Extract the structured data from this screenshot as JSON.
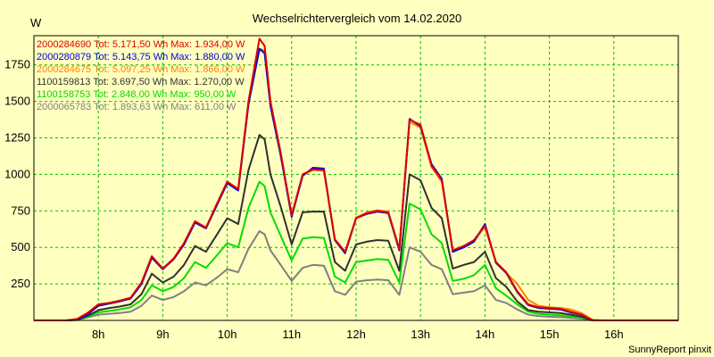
{
  "chart_data": {
    "type": "line",
    "title": "Wechselrichtervergleich vom 14.02.2020",
    "ylabel": "W",
    "xlabel": "",
    "footer": "SunnyReport pinxit",
    "xlim": [
      7.0,
      17.0
    ],
    "ylim": [
      0,
      1950
    ],
    "grid": true,
    "legend_position": "top-left",
    "x_ticks": [
      8,
      9,
      10,
      11,
      12,
      13,
      14,
      15,
      16
    ],
    "x_tick_labels": [
      "8h",
      "9h",
      "10h",
      "11h",
      "12h",
      "13h",
      "14h",
      "15h",
      "16h"
    ],
    "y_ticks": [
      250,
      500,
      750,
      1000,
      1250,
      1500,
      1750
    ],
    "y_tick_labels": [
      "250",
      "500",
      "750",
      "1000",
      "1250",
      "1500",
      "1750"
    ],
    "x": [
      7.0,
      7.25,
      7.5,
      7.67,
      7.83,
      8.0,
      8.17,
      8.33,
      8.5,
      8.67,
      8.83,
      9.0,
      9.17,
      9.33,
      9.5,
      9.67,
      9.83,
      10.0,
      10.17,
      10.33,
      10.5,
      10.58,
      10.67,
      10.83,
      11.0,
      11.17,
      11.33,
      11.5,
      11.67,
      11.83,
      12.0,
      12.17,
      12.33,
      12.5,
      12.67,
      12.83,
      13.0,
      13.17,
      13.33,
      13.5,
      13.67,
      13.83,
      14.0,
      14.17,
      14.33,
      14.5,
      14.67,
      14.83,
      15.0,
      15.17,
      15.33,
      15.5,
      15.67,
      15.83,
      16.0,
      16.17,
      16.33,
      16.5,
      16.67,
      16.83,
      17.0
    ],
    "series": [
      {
        "name": "2000284690",
        "label": "2000284690 Tot: 5.171,50 Wh Max: 1.934,00 W",
        "color": "#dd0000",
        "values": [
          0,
          0,
          0,
          10,
          50,
          110,
          120,
          135,
          155,
          260,
          440,
          355,
          425,
          530,
          680,
          635,
          790,
          950,
          900,
          1500,
          1930,
          1880,
          1500,
          1150,
          720,
          1000,
          1035,
          1030,
          555,
          470,
          700,
          735,
          750,
          740,
          490,
          1375,
          1340,
          1060,
          960,
          480,
          510,
          550,
          650,
          400,
          330,
          200,
          110,
          90,
          85,
          80,
          60,
          40,
          0,
          0,
          0,
          0,
          0,
          0,
          0,
          0,
          0
        ]
      },
      {
        "name": "2000280879",
        "label": "2000280879 Tot: 5.143,75 Wh Max: 1.880,00 W",
        "color": "#0000dd",
        "values": [
          0,
          0,
          0,
          5,
          40,
          100,
          115,
          130,
          150,
          250,
          430,
          350,
          420,
          520,
          670,
          630,
          780,
          940,
          890,
          1480,
          1860,
          1830,
          1470,
          1130,
          710,
          990,
          1045,
          1040,
          550,
          460,
          700,
          730,
          745,
          735,
          480,
          1380,
          1330,
          1070,
          970,
          470,
          500,
          540,
          660,
          395,
          325,
          195,
          105,
          85,
          80,
          75,
          55,
          38,
          0,
          0,
          0,
          0,
          0,
          0,
          0,
          0,
          0
        ]
      },
      {
        "name": "2000284675",
        "label": "2000284675 Tot: 5.097,25 Wh Max: 1.866,00 W",
        "color": "#ff8000",
        "values": [
          0,
          0,
          0,
          8,
          45,
          105,
          118,
          130,
          152,
          255,
          435,
          352,
          422,
          525,
          675,
          632,
          785,
          945,
          895,
          1490,
          1860,
          1850,
          1480,
          1140,
          715,
          995,
          1030,
          1025,
          550,
          465,
          705,
          740,
          755,
          745,
          485,
          1360,
          1320,
          1050,
          950,
          475,
          505,
          545,
          640,
          395,
          325,
          250,
          140,
          100,
          90,
          85,
          75,
          50,
          5,
          0,
          0,
          0,
          0,
          0,
          0,
          0,
          0
        ]
      },
      {
        "name": "1100159813",
        "label": "1100159813 Tot: 3.697,50 Wh Max: 1.270,00 W",
        "color": "#303030",
        "values": [
          0,
          0,
          0,
          5,
          30,
          70,
          85,
          95,
          110,
          180,
          320,
          260,
          300,
          380,
          510,
          470,
          580,
          700,
          660,
          1030,
          1270,
          1240,
          1000,
          780,
          520,
          740,
          745,
          745,
          400,
          340,
          520,
          540,
          550,
          545,
          340,
          1000,
          960,
          770,
          700,
          355,
          380,
          400,
          470,
          290,
          230,
          130,
          70,
          60,
          55,
          50,
          40,
          25,
          0,
          0,
          0,
          0,
          0,
          0,
          0,
          0,
          0
        ]
      },
      {
        "name": "1100158753",
        "label": "1100158753 Tot: 2.848,00 Wh Max: 950,00 W",
        "color": "#00dd00",
        "values": [
          0,
          0,
          0,
          3,
          25,
          55,
          65,
          75,
          90,
          140,
          240,
          200,
          230,
          290,
          400,
          360,
          440,
          530,
          500,
          770,
          950,
          920,
          740,
          580,
          410,
          560,
          570,
          565,
          300,
          260,
          400,
          410,
          420,
          415,
          260,
          800,
          760,
          590,
          530,
          270,
          285,
          310,
          380,
          220,
          170,
          110,
          60,
          45,
          40,
          35,
          28,
          18,
          0,
          0,
          0,
          0,
          0,
          0,
          0,
          0,
          0
        ]
      },
      {
        "name": "2000065783",
        "label": "2000065783 Tot: 1.893,63 Wh Max: 611,00 W",
        "color": "#808080",
        "values": [
          0,
          0,
          0,
          2,
          20,
          40,
          45,
          50,
          60,
          100,
          170,
          140,
          160,
          200,
          260,
          240,
          290,
          350,
          330,
          490,
          611,
          590,
          480,
          380,
          270,
          360,
          380,
          375,
          200,
          175,
          265,
          275,
          280,
          275,
          175,
          500,
          470,
          380,
          350,
          180,
          190,
          200,
          240,
          140,
          120,
          75,
          40,
          30,
          25,
          22,
          18,
          12,
          0,
          0,
          0,
          0,
          0,
          0,
          0,
          0,
          0
        ]
      }
    ]
  }
}
